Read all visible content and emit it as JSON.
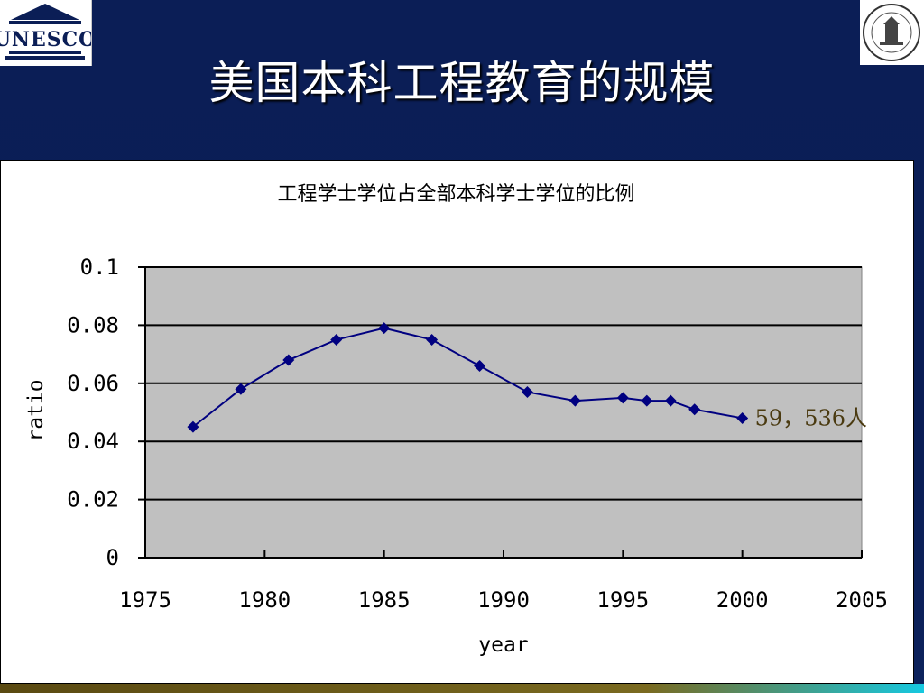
{
  "slide": {
    "title": "美国本科工程教育的规模",
    "left_logo_text": "UNESCO",
    "left_logo_icon": "unesco-temple-logo-icon",
    "right_logo_icon": "university-seal-icon"
  },
  "colors": {
    "background": "#0b1e56",
    "plot_area": "#c0c0c0",
    "series_line": "#000080",
    "annotation": "#4a3a10"
  },
  "chart_data": {
    "type": "line",
    "title": "工程学士学位占全部本科学士学位的比例",
    "xlabel": "year",
    "ylabel": "ratio",
    "xlim": [
      1975,
      2005
    ],
    "ylim": [
      0,
      0.1
    ],
    "x_ticks": [
      "1975",
      "1980",
      "1985",
      "1990",
      "1995",
      "2000",
      "2005"
    ],
    "y_ticks": [
      "0",
      "0.02",
      "0.04",
      "0.06",
      "0.08",
      "0.1"
    ],
    "grid": "horizontal",
    "legend": "none",
    "series": [
      {
        "x": [
          1977,
          1979,
          1981,
          1983,
          1985,
          1987,
          1989,
          1991,
          1993,
          1995,
          1996,
          1997,
          1998,
          2000
        ],
        "y": [
          0.045,
          0.058,
          0.068,
          0.075,
          0.079,
          0.075,
          0.066,
          0.057,
          0.054,
          0.055,
          0.054,
          0.054,
          0.051,
          0.048
        ]
      }
    ],
    "annotations": [
      {
        "x": 2000,
        "y": 0.048,
        "text": "59，536人"
      }
    ]
  }
}
